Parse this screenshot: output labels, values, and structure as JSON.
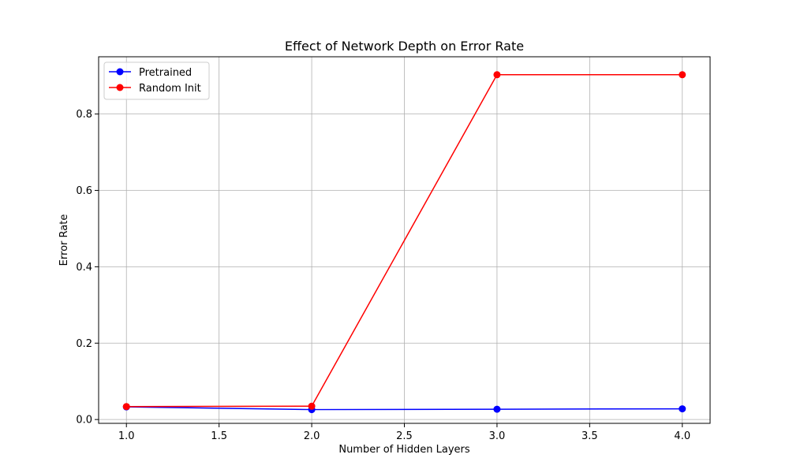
{
  "chart_data": {
    "type": "line",
    "title": "Effect of Network Depth on Error Rate",
    "xlabel": "Number of Hidden Layers",
    "ylabel": "Error Rate",
    "x": [
      1.0,
      2.0,
      3.0,
      4.0
    ],
    "xlim": [
      0.85,
      4.15
    ],
    "ylim": [
      -0.01,
      0.95
    ],
    "x_ticks": [
      "1.0",
      "1.5",
      "2.0",
      "2.5",
      "3.0",
      "3.5",
      "4.0"
    ],
    "y_ticks": [
      "0.0",
      "0.2",
      "0.4",
      "0.6",
      "0.8"
    ],
    "grid": true,
    "legend_position": "top-left",
    "series": [
      {
        "name": "Pretrained",
        "color": "#0000ff",
        "marker": "circle",
        "values": [
          0.033,
          0.026,
          0.027,
          0.028
        ]
      },
      {
        "name": "Random Init",
        "color": "#ff0000",
        "marker": "circle",
        "values": [
          0.034,
          0.035,
          0.903,
          0.903
        ]
      }
    ]
  }
}
